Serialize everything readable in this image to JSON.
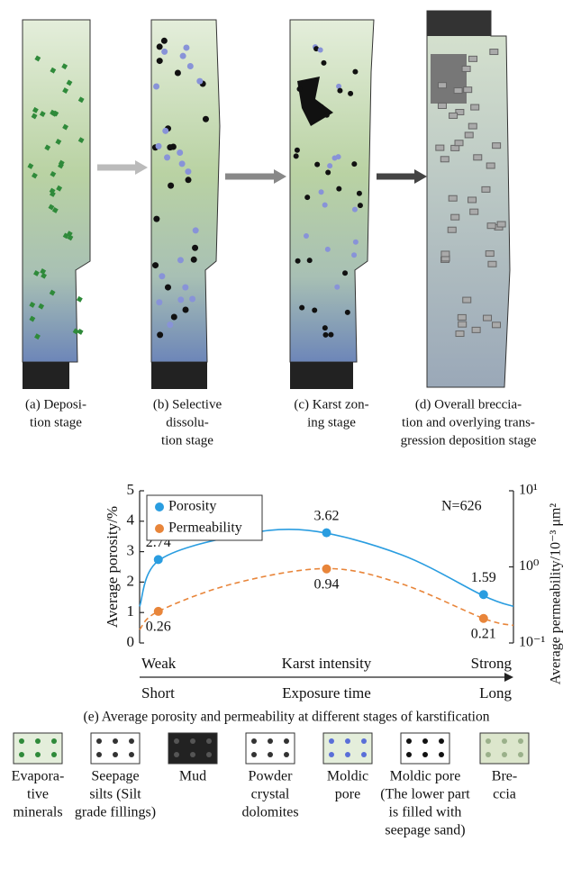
{
  "panels": [
    {
      "caption": [
        "(a) Deposi-",
        "tion stage"
      ]
    },
    {
      "caption": [
        "(b) Selective",
        "dissolu-",
        "tion stage"
      ]
    },
    {
      "caption": [
        "(c) Karst zon-",
        "ing stage"
      ]
    },
    {
      "caption": [
        "(d) Overall breccia-",
        "tion and overlying trans-",
        "gression deposition stage"
      ]
    }
  ],
  "chart_data": {
    "type": "line",
    "title": "(e) Average porosity and permeability at different stages of karstification",
    "ylabel": "Average porosity/%",
    "y2label": "Average permeability/10⁻³ μm²",
    "annotation": "N=626",
    "xlabel": [
      "Weak",
      "Karst intensity",
      "Strong"
    ],
    "xlabel2": [
      "Short",
      "Exposure time",
      "Long"
    ],
    "xlim": [
      0,
      10
    ],
    "ylim": [
      0,
      5
    ],
    "yticks": [
      0,
      1,
      2,
      3,
      4,
      5
    ],
    "y2lim": [
      0.1,
      10
    ],
    "y2scale": "log",
    "y2ticks": [
      {
        "value": 0.1,
        "label": "10⁻¹"
      },
      {
        "value": 1,
        "label": "10⁰"
      },
      {
        "value": 10,
        "label": "10¹"
      }
    ],
    "legend": "top-left",
    "series": [
      {
        "name": "Porosity",
        "color": "#2a9de0",
        "x": [
          0.5,
          5,
          9.2
        ],
        "values": [
          2.74,
          3.62,
          1.59
        ]
      },
      {
        "name": "Permeability",
        "color": "#e8853a",
        "axis": "y2",
        "x": [
          0.5,
          5,
          9.2
        ],
        "values": [
          0.26,
          0.94,
          0.21
        ]
      }
    ],
    "curves": [
      {
        "color": "#2a9de0",
        "style": "solid",
        "x": [
          0,
          0.5,
          2.5,
          4.5,
          7,
          9.2,
          10
        ],
        "values": [
          1.2,
          2.7,
          3.5,
          3.7,
          2.9,
          1.55,
          1.2
        ]
      },
      {
        "color": "#e8853a",
        "style": "dashed",
        "axis": "y2",
        "x": [
          0,
          0.5,
          2.5,
          5,
          7,
          9.2,
          10
        ],
        "values": [
          0.15,
          0.26,
          0.6,
          0.95,
          0.6,
          0.21,
          0.17
        ]
      }
    ]
  },
  "legend": [
    {
      "label": [
        "Evapora-",
        "tive",
        "minerals"
      ]
    },
    {
      "label": [
        "Seepage",
        "silts (Silt",
        "grade fillings)"
      ]
    },
    {
      "label": [
        "Mud"
      ]
    },
    {
      "label": [
        "Powder",
        "crystal",
        "dolomites"
      ]
    },
    {
      "label": [
        "Moldic",
        "pore"
      ]
    },
    {
      "label": [
        "Moldic pore",
        "(The lower part",
        "is filled with",
        "seepage sand)"
      ]
    },
    {
      "label": [
        "Bre-",
        "ccia"
      ]
    }
  ]
}
